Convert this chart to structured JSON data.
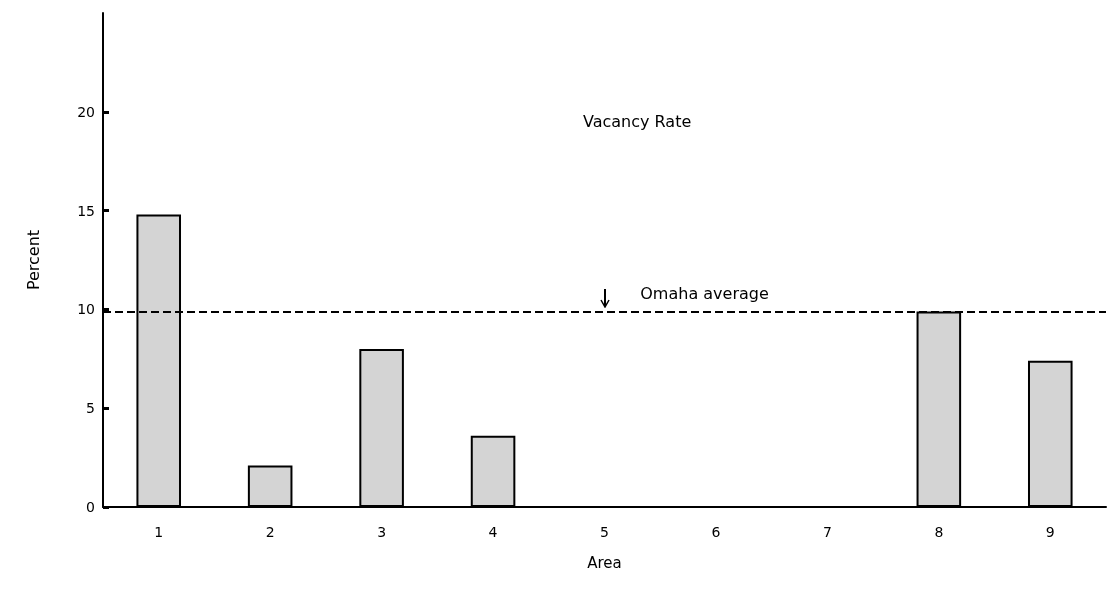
{
  "chart_data": {
    "type": "bar",
    "title": "Vacancy Rate",
    "xlabel": "Area",
    "ylabel": "Percent",
    "categories": [
      "1",
      "2",
      "3",
      "4",
      "5",
      "6",
      "7",
      "8",
      "9"
    ],
    "values": [
      14.8,
      2.1,
      8.0,
      3.6,
      0,
      0,
      0,
      9.9,
      7.4
    ],
    "color": "#d4d4d4",
    "ylim": [
      0,
      25
    ],
    "yticks": [
      0,
      5,
      10,
      15,
      20
    ],
    "ref_lines": [
      {
        "axis": "y",
        "value": 9.9,
        "label": "Omaha average",
        "line_style": "dashed",
        "color": "#000000"
      }
    ],
    "grid": false
  }
}
